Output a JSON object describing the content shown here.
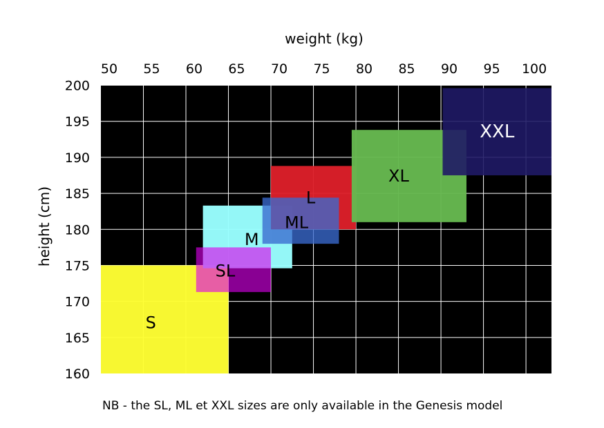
{
  "chart_data": {
    "type": "area",
    "xlabel": "weight (kg)",
    "ylabel": "height (cm)",
    "xlim": [
      50,
      103
    ],
    "ylim": [
      160,
      200
    ],
    "x_ticks": [
      "50",
      "55",
      "60",
      "65",
      "70",
      "75",
      "80",
      "85",
      "90",
      "95",
      "100"
    ],
    "y_ticks": [
      "200",
      "195",
      "190",
      "185",
      "180",
      "175",
      "170",
      "165",
      "160"
    ],
    "grid": true,
    "x_axis_position": "top",
    "background_color": "#000000",
    "grid_color": "#ffffff",
    "regions": [
      {
        "label": "S",
        "weight_min": 50,
        "weight_max": 65,
        "height_min": 160,
        "height_max": 175,
        "color": "#ffff33",
        "opacity": 0.97
      },
      {
        "label": "M",
        "weight_min": 62,
        "weight_max": 72.5,
        "height_min": 174.6,
        "height_max": 183.3,
        "color": "#99ffff",
        "opacity": 0.97
      },
      {
        "label": "L",
        "weight_min": 70,
        "weight_max": 80,
        "height_min": 180,
        "height_max": 188.8,
        "color": "#dd1f2a",
        "opacity": 0.96
      },
      {
        "label": "XL",
        "weight_min": 79.5,
        "weight_max": 93,
        "height_min": 181,
        "height_max": 193.8,
        "color": "#66b84f",
        "opacity": 0.97
      },
      {
        "label": "XXL",
        "weight_min": 90.2,
        "weight_max": 103,
        "height_min": 187.5,
        "height_max": 199.6,
        "color": "#1f1a66",
        "opacity": 0.9
      },
      {
        "label": "SL",
        "weight_min": 61.2,
        "weight_max": 70,
        "height_min": 171.3,
        "height_max": 177.5,
        "color": "#dd00ee",
        "opacity": 0.62
      },
      {
        "label": "ML",
        "weight_min": 69,
        "weight_max": 78,
        "height_min": 178,
        "height_max": 184.4,
        "color": "#3a6ad0",
        "opacity": 0.78
      }
    ]
  },
  "footnote": "NB - the SL, ML et XXL sizes are only available in the Genesis model"
}
